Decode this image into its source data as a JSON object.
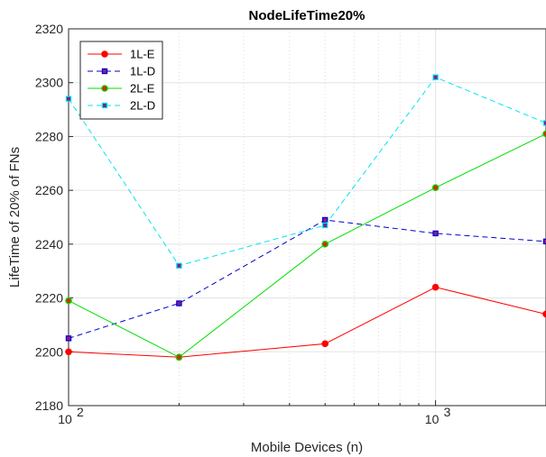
{
  "chart_data": {
    "type": "line",
    "title": "NodeLifeTime20%",
    "xlabel": "Mobile Devices (n)",
    "ylabel": "LifeTime of 20% of FNs",
    "xscale": "log",
    "xlim": [
      100,
      2000
    ],
    "ylim": [
      2180,
      2320
    ],
    "yticks": [
      2180,
      2200,
      2220,
      2240,
      2260,
      2280,
      2300,
      2320
    ],
    "x": [
      100,
      200,
      500,
      1000,
      2000
    ],
    "grid": true,
    "legend_position": "top-left",
    "series": [
      {
        "name": "1L-E",
        "values": [
          2200,
          2198,
          2203,
          2224,
          2214
        ],
        "color": "#ff0000",
        "marker": "circle",
        "dash": "solid",
        "marker_fill": "#ff0000"
      },
      {
        "name": "1L-D",
        "values": [
          2205,
          2218,
          2249,
          2244,
          2241
        ],
        "color": "#0000cc",
        "marker": "square",
        "dash": "dashed",
        "marker_fill": "#8b1a8b"
      },
      {
        "name": "2L-E",
        "values": [
          2219,
          2198,
          2240,
          2261,
          2281
        ],
        "color": "#00dd00",
        "marker": "circle",
        "dash": "solid",
        "marker_fill": "#cc3300"
      },
      {
        "name": "2L-D",
        "values": [
          2294,
          2232,
          2247,
          2302,
          2285
        ],
        "color": "#00e5ee",
        "marker": "square",
        "dash": "dashed",
        "marker_fill": "#8b1a8b"
      }
    ]
  }
}
